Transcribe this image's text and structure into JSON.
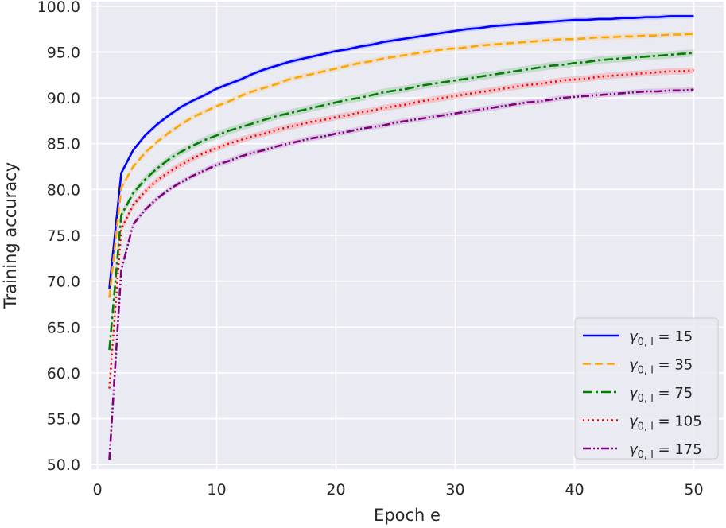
{
  "chart_data": {
    "type": "line",
    "xlabel": "Epoch e",
    "ylabel": "Training accuracy",
    "xlim": [
      -0.5,
      52.5
    ],
    "ylim": [
      49.5,
      100.5
    ],
    "xticks": [
      0,
      10,
      20,
      30,
      40,
      50
    ],
    "yticks": [
      50.0,
      55.0,
      60.0,
      65.0,
      70.0,
      75.0,
      80.0,
      85.0,
      90.0,
      95.0,
      100.0
    ],
    "xtick_labels": [
      "0",
      "10",
      "20",
      "30",
      "40",
      "50"
    ],
    "ytick_labels": [
      "50.0",
      "55.0",
      "60.0",
      "65.0",
      "70.0",
      "75.0",
      "80.0",
      "85.0",
      "90.0",
      "95.0",
      "100.0"
    ],
    "grid": true,
    "legend_position": "bottom-right",
    "x": [
      1,
      2,
      3,
      4,
      5,
      6,
      7,
      8,
      9,
      10,
      11,
      12,
      13,
      14,
      15,
      16,
      17,
      18,
      19,
      20,
      21,
      22,
      23,
      24,
      25,
      26,
      27,
      28,
      29,
      30,
      31,
      32,
      33,
      34,
      35,
      36,
      37,
      38,
      39,
      40,
      41,
      42,
      43,
      44,
      45,
      46,
      47,
      48,
      49,
      50
    ],
    "series": [
      {
        "name": "γ0,l = 15",
        "legend_prefix": "γ",
        "legend_sub": "0, l",
        "legend_suffix": " = 15",
        "color": "#0000ff",
        "dash": "",
        "band": 0.25,
        "values": [
          69.2,
          81.8,
          84.3,
          85.9,
          87.1,
          88.1,
          89.0,
          89.7,
          90.3,
          91.0,
          91.5,
          92.0,
          92.6,
          93.1,
          93.5,
          93.9,
          94.2,
          94.5,
          94.8,
          95.1,
          95.3,
          95.6,
          95.8,
          96.1,
          96.3,
          96.5,
          96.7,
          96.9,
          97.1,
          97.3,
          97.5,
          97.6,
          97.8,
          97.9,
          98.0,
          98.1,
          98.2,
          98.3,
          98.4,
          98.5,
          98.5,
          98.6,
          98.6,
          98.7,
          98.7,
          98.8,
          98.8,
          98.9,
          98.9,
          98.9
        ]
      },
      {
        "name": "γ0,l = 35",
        "legend_prefix": "γ",
        "legend_sub": "0, l",
        "legend_suffix": " = 35",
        "color": "#ffa500",
        "dash": "10,5",
        "band": 0.3,
        "values": [
          68.2,
          80.2,
          82.5,
          84.0,
          85.2,
          86.2,
          87.1,
          87.9,
          88.5,
          89.1,
          89.6,
          90.2,
          90.7,
          91.1,
          91.5,
          92.0,
          92.3,
          92.6,
          92.9,
          93.2,
          93.5,
          93.8,
          94.0,
          94.3,
          94.5,
          94.7,
          94.9,
          95.1,
          95.3,
          95.4,
          95.5,
          95.7,
          95.8,
          95.9,
          96.0,
          96.1,
          96.2,
          96.3,
          96.4,
          96.4,
          96.5,
          96.6,
          96.6,
          96.7,
          96.7,
          96.8,
          96.8,
          96.9,
          96.9,
          97.0
        ]
      },
      {
        "name": "γ0,l = 75",
        "legend_prefix": "γ",
        "legend_sub": "0, l",
        "legend_suffix": " = 75",
        "color": "#008000",
        "dash": "12,4,3,4",
        "band": 0.4,
        "values": [
          62.5,
          77.2,
          79.6,
          81.1,
          82.3,
          83.3,
          84.1,
          84.8,
          85.4,
          85.9,
          86.4,
          86.8,
          87.2,
          87.6,
          88.0,
          88.3,
          88.6,
          88.9,
          89.2,
          89.5,
          89.8,
          90.0,
          90.3,
          90.6,
          90.8,
          91.0,
          91.3,
          91.5,
          91.7,
          91.9,
          92.1,
          92.3,
          92.5,
          92.7,
          92.9,
          93.1,
          93.3,
          93.5,
          93.6,
          93.8,
          93.9,
          94.1,
          94.2,
          94.3,
          94.4,
          94.5,
          94.6,
          94.7,
          94.8,
          94.9
        ]
      },
      {
        "name": "γ0,l = 105",
        "legend_prefix": "γ",
        "legend_sub": "0, l",
        "legend_suffix": " = 105",
        "color": "#ff0000",
        "dash": "2,4",
        "band": 0.35,
        "values": [
          58.3,
          75.7,
          78.3,
          79.8,
          81.0,
          81.9,
          82.7,
          83.4,
          84.0,
          84.5,
          85.0,
          85.4,
          85.8,
          86.1,
          86.5,
          86.8,
          87.1,
          87.4,
          87.6,
          87.9,
          88.1,
          88.4,
          88.6,
          88.9,
          89.1,
          89.3,
          89.6,
          89.8,
          90.0,
          90.2,
          90.4,
          90.6,
          90.8,
          91.0,
          91.2,
          91.4,
          91.5,
          91.7,
          91.9,
          92.0,
          92.1,
          92.3,
          92.4,
          92.5,
          92.6,
          92.7,
          92.8,
          92.9,
          92.9,
          93.0
        ]
      },
      {
        "name": "γ0,l = 175",
        "legend_prefix": "γ",
        "legend_sub": "0, l",
        "legend_suffix": " = 175",
        "color": "#800080",
        "dash": "10,3,2,3,2,3",
        "band": 0.3,
        "values": [
          50.5,
          71.2,
          76.2,
          77.8,
          79.0,
          80.0,
          80.8,
          81.5,
          82.1,
          82.7,
          83.1,
          83.6,
          84.0,
          84.3,
          84.7,
          85.0,
          85.3,
          85.6,
          85.8,
          86.1,
          86.3,
          86.6,
          86.8,
          87.0,
          87.3,
          87.5,
          87.7,
          87.9,
          88.1,
          88.3,
          88.5,
          88.7,
          88.9,
          89.1,
          89.3,
          89.5,
          89.6,
          89.8,
          90.0,
          90.1,
          90.2,
          90.3,
          90.4,
          90.5,
          90.6,
          90.7,
          90.7,
          90.8,
          90.8,
          90.9
        ]
      }
    ]
  }
}
